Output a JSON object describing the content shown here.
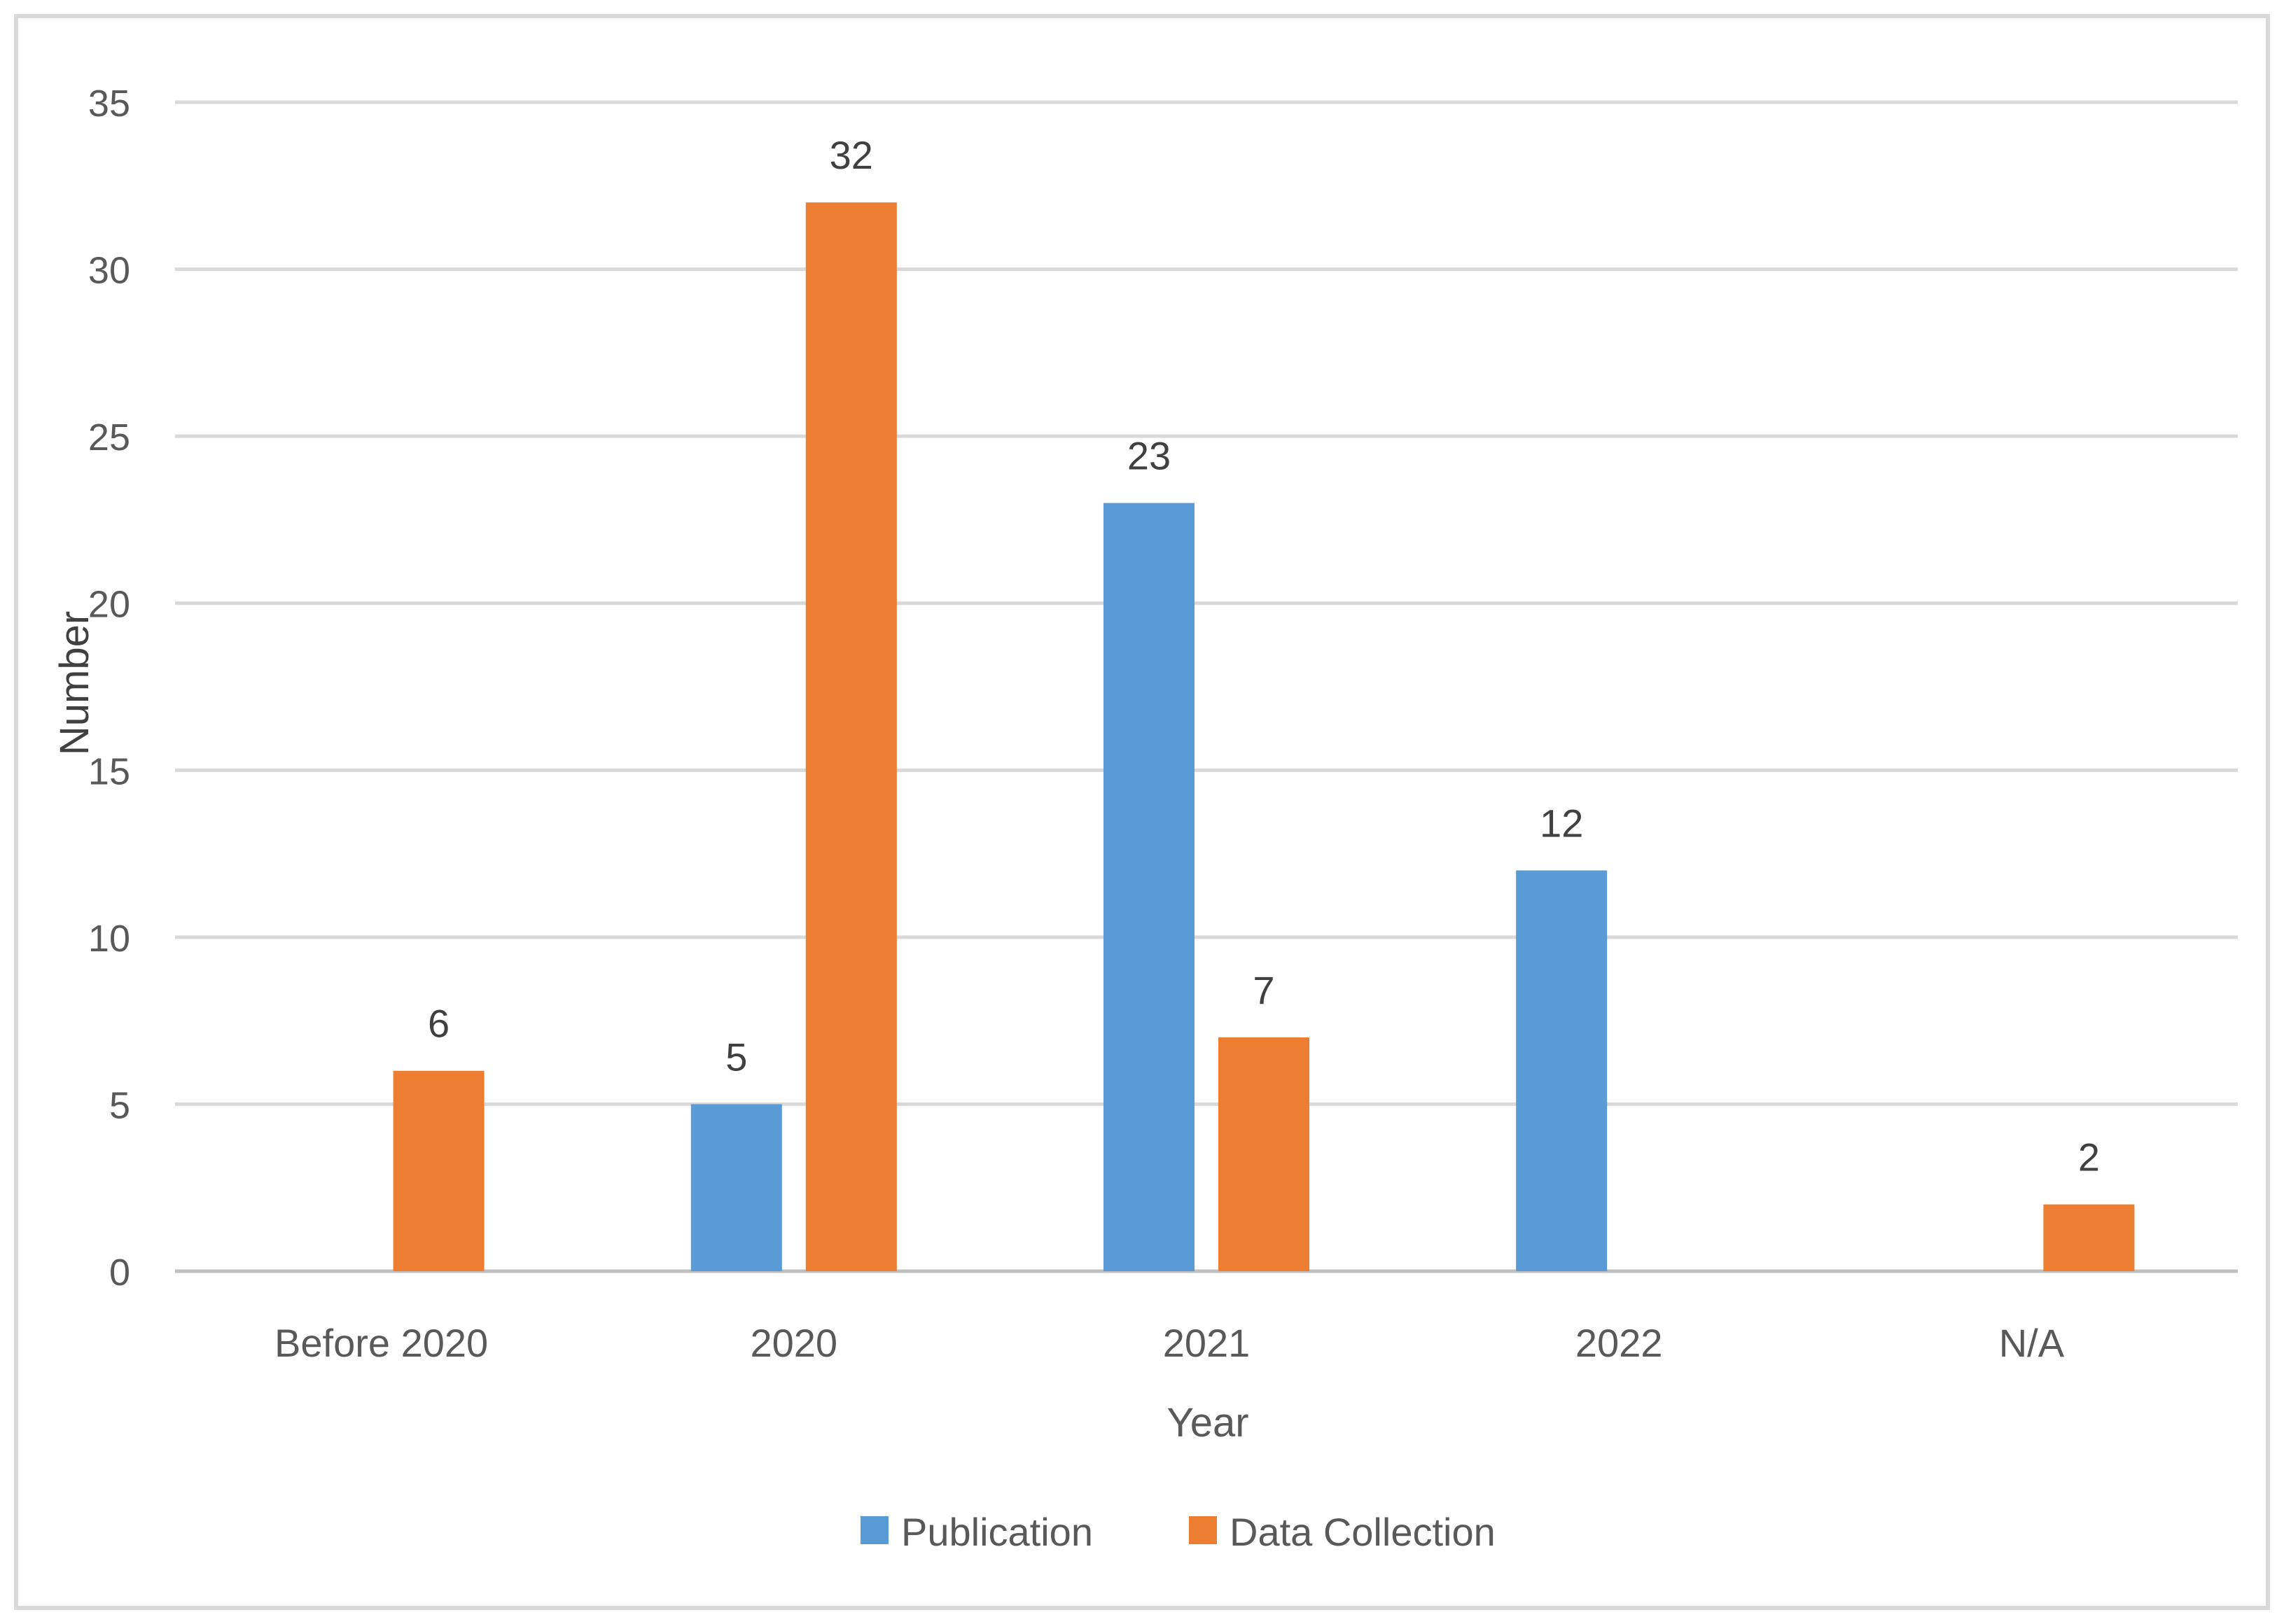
{
  "chart_data": {
    "type": "bar",
    "title": "",
    "xlabel": "Year",
    "ylabel": "Number",
    "categories": [
      "Before 2020",
      "2020",
      "2021",
      "2022",
      "N/A"
    ],
    "series": [
      {
        "name": "Publication",
        "color": "#5b9bd5",
        "values": [
          null,
          5,
          23,
          12,
          null
        ]
      },
      {
        "name": "Data Collection",
        "color": "#ed7d31",
        "values": [
          6,
          32,
          7,
          null,
          2
        ]
      }
    ],
    "ylim": [
      0,
      35
    ],
    "yticks": [
      "0",
      "5",
      "10",
      "15",
      "20",
      "25",
      "30",
      "35"
    ],
    "grid": true,
    "legend_position": "bottom",
    "colors": {
      "grid": "#d9d9d9",
      "axis": "#bfbfbf",
      "text": "#595959",
      "label": "#404040",
      "border": "#d9d9d9"
    }
  }
}
